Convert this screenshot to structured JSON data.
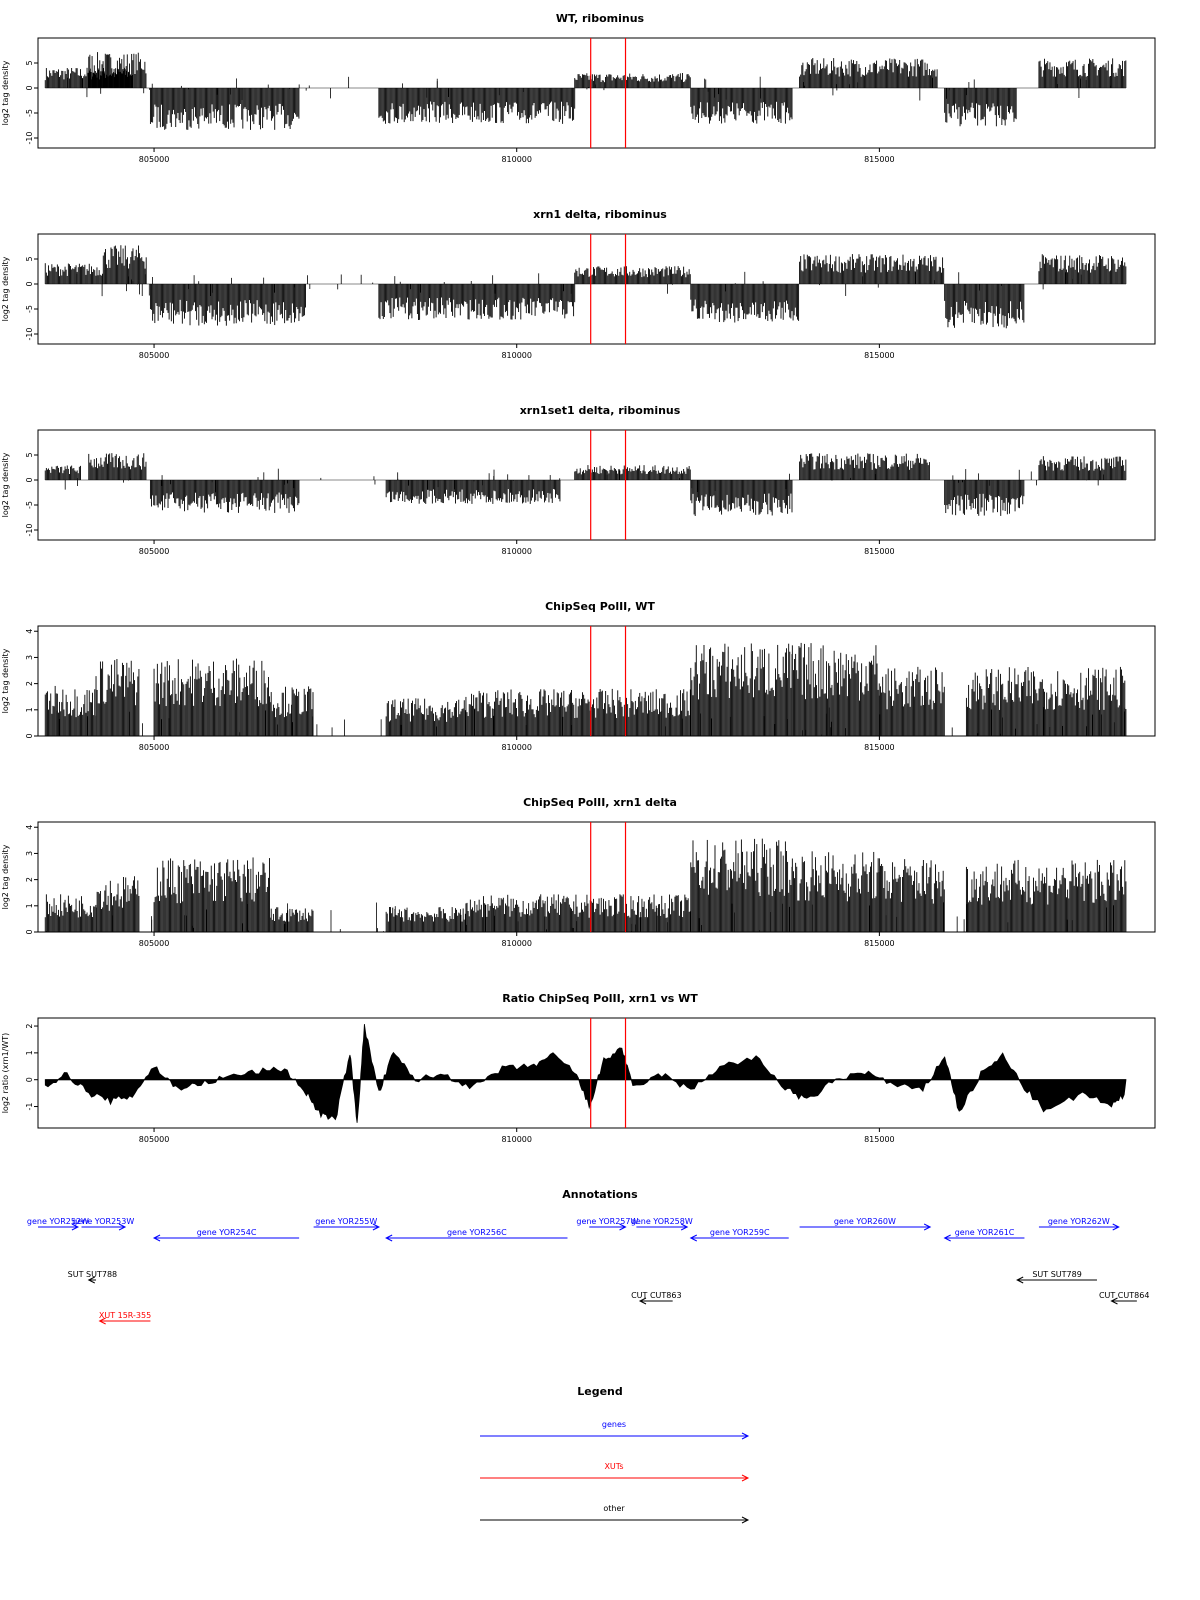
{
  "chart_data": [
    {
      "type": "bar",
      "title": "WT, ribominus",
      "ylabel": "log2 tag density",
      "ylim": [
        -12,
        10
      ],
      "yticks": [
        -10,
        -5,
        0,
        5
      ],
      "xlim": [
        803400,
        818800
      ],
      "xticks": [
        805000,
        810000,
        815000
      ],
      "xtick_labels": [
        "805000",
        "810000",
        "815000"
      ],
      "red_lines_x": [
        811020,
        811500
      ],
      "series": [
        {
          "segments": [
            {
              "x0": 803500,
              "x1": 804700,
              "value": 3.5
            },
            {
              "x0": 804100,
              "x1": 804900,
              "value": 6
            },
            {
              "x0": 804950,
              "x1": 807000,
              "value": -7
            },
            {
              "x0": 808100,
              "x1": 810800,
              "value": -6
            },
            {
              "x0": 810800,
              "x1": 812400,
              "value": 2.5
            },
            {
              "x0": 812400,
              "x1": 813800,
              "value": -6
            },
            {
              "x0": 813900,
              "x1": 815800,
              "value": 5
            },
            {
              "x0": 815900,
              "x1": 816900,
              "value": -6.5
            },
            {
              "x0": 817200,
              "x1": 818400,
              "value": 5
            }
          ]
        }
      ]
    },
    {
      "type": "bar",
      "title": "xrn1 delta, ribominus",
      "ylabel": "log2 tag density",
      "ylim": [
        -12,
        10
      ],
      "yticks": [
        -10,
        -5,
        0,
        5
      ],
      "xlim": [
        803400,
        818800
      ],
      "xticks": [
        805000,
        810000,
        815000
      ],
      "xtick_labels": [
        "805000",
        "810000",
        "815000"
      ],
      "red_lines_x": [
        811020,
        811500
      ],
      "series": [
        {
          "segments": [
            {
              "x0": 803500,
              "x1": 804300,
              "value": 3.5
            },
            {
              "x0": 804300,
              "x1": 804900,
              "value": 6.5
            },
            {
              "x0": 804950,
              "x1": 807100,
              "value": -7
            },
            {
              "x0": 808100,
              "x1": 810800,
              "value": -6
            },
            {
              "x0": 810800,
              "x1": 812400,
              "value": 3
            },
            {
              "x0": 812400,
              "x1": 813900,
              "value": -6.5
            },
            {
              "x0": 813900,
              "x1": 815900,
              "value": 5
            },
            {
              "x0": 815900,
              "x1": 817000,
              "value": -7.5
            },
            {
              "x0": 817200,
              "x1": 818400,
              "value": 5
            }
          ]
        }
      ]
    },
    {
      "type": "bar",
      "title": "xrn1set1 delta, ribominus",
      "ylabel": "log2 tag density",
      "ylim": [
        -12,
        10
      ],
      "yticks": [
        -10,
        -5,
        0,
        5
      ],
      "xlim": [
        803400,
        818800
      ],
      "xticks": [
        805000,
        810000,
        815000
      ],
      "xtick_labels": [
        "805000",
        "810000",
        "815000"
      ],
      "red_lines_x": [
        811020,
        811500
      ],
      "series": [
        {
          "segments": [
            {
              "x0": 803500,
              "x1": 804000,
              "value": 2.5
            },
            {
              "x0": 804100,
              "x1": 804900,
              "value": 4.5
            },
            {
              "x0": 804950,
              "x1": 807000,
              "value": -5.5
            },
            {
              "x0": 808200,
              "x1": 810600,
              "value": -4
            },
            {
              "x0": 810800,
              "x1": 812400,
              "value": 2.5
            },
            {
              "x0": 812400,
              "x1": 813800,
              "value": -6
            },
            {
              "x0": 813900,
              "x1": 815700,
              "value": 4.5
            },
            {
              "x0": 815900,
              "x1": 817000,
              "value": -6
            },
            {
              "x0": 817200,
              "x1": 818400,
              "value": 4
            }
          ]
        }
      ]
    },
    {
      "type": "bar",
      "title": "ChipSeq PolII, WT",
      "ylabel": "log2 tag density",
      "ylim": [
        0,
        4.2
      ],
      "yticks": [
        0,
        1,
        2,
        3,
        4
      ],
      "xlim": [
        803400,
        818800
      ],
      "xticks": [
        805000,
        810000,
        815000
      ],
      "xtick_labels": [
        "805000",
        "810000",
        "815000"
      ],
      "red_lines_x": [
        811020,
        811500
      ],
      "series": [
        {
          "segments": [
            {
              "x0": 803500,
              "x1": 804200,
              "value": 1.6
            },
            {
              "x0": 804200,
              "x1": 804800,
              "value": 2.5
            },
            {
              "x0": 805000,
              "x1": 806600,
              "value": 2.5
            },
            {
              "x0": 806600,
              "x1": 807200,
              "value": 1.6
            },
            {
              "x0": 808200,
              "x1": 809300,
              "value": 1.2
            },
            {
              "x0": 809300,
              "x1": 812400,
              "value": 1.5
            },
            {
              "x0": 812400,
              "x1": 813800,
              "value": 3
            },
            {
              "x0": 813800,
              "x1": 815000,
              "value": 3
            },
            {
              "x0": 815000,
              "x1": 815900,
              "value": 2.2
            },
            {
              "x0": 816200,
              "x1": 818400,
              "value": 2.2
            }
          ]
        }
      ]
    },
    {
      "type": "bar",
      "title": "ChipSeq PolII, xrn1 delta",
      "ylabel": "log2 tag density",
      "ylim": [
        0,
        4.2
      ],
      "yticks": [
        0,
        1,
        2,
        3,
        4
      ],
      "xlim": [
        803400,
        818800
      ],
      "xticks": [
        805000,
        810000,
        815000
      ],
      "xtick_labels": [
        "805000",
        "810000",
        "815000"
      ],
      "red_lines_x": [
        811020,
        811500
      ],
      "series": [
        {
          "segments": [
            {
              "x0": 803500,
              "x1": 804200,
              "value": 1.2
            },
            {
              "x0": 804200,
              "x1": 804800,
              "value": 1.8
            },
            {
              "x0": 805000,
              "x1": 806600,
              "value": 2.4
            },
            {
              "x0": 806600,
              "x1": 807200,
              "value": 0.8
            },
            {
              "x0": 808200,
              "x1": 809300,
              "value": 0.8
            },
            {
              "x0": 809300,
              "x1": 812400,
              "value": 1.2
            },
            {
              "x0": 812400,
              "x1": 813800,
              "value": 3
            },
            {
              "x0": 813800,
              "x1": 815000,
              "value": 2.6
            },
            {
              "x0": 815000,
              "x1": 815900,
              "value": 2.4
            },
            {
              "x0": 816200,
              "x1": 818400,
              "value": 2.3
            }
          ]
        }
      ]
    },
    {
      "type": "area",
      "title": "Ratio ChipSeq PolII, xrn1 vs WT",
      "ylabel": "log2 ratio (xrn1/WT)",
      "ylim": [
        -1.8,
        2.3
      ],
      "yticks": [
        -1,
        0,
        1,
        2
      ],
      "xlim": [
        803400,
        818800
      ],
      "xticks": [
        805000,
        810000,
        815000
      ],
      "xtick_labels": [
        "805000",
        "810000",
        "815000"
      ],
      "red_lines_x": [
        811020,
        811500
      ],
      "series": [
        {
          "points": [
            [
              803500,
              -0.2
            ],
            [
              803800,
              0.2
            ],
            [
              804100,
              -0.5
            ],
            [
              804400,
              -0.8
            ],
            [
              804700,
              -0.6
            ],
            [
              805000,
              0.5
            ],
            [
              805300,
              -0.3
            ],
            [
              805600,
              -0.2
            ],
            [
              806000,
              0.1
            ],
            [
              806400,
              0.3
            ],
            [
              806800,
              0.4
            ],
            [
              807100,
              -0.5
            ],
            [
              807300,
              -1.3
            ],
            [
              807500,
              -1.5
            ],
            [
              807700,
              1.0
            ],
            [
              807800,
              -1.6
            ],
            [
              807900,
              2.0
            ],
            [
              808100,
              -0.5
            ],
            [
              808300,
              1.0
            ],
            [
              808600,
              0.0
            ],
            [
              809000,
              0.2
            ],
            [
              809400,
              -0.3
            ],
            [
              809800,
              0.4
            ],
            [
              810200,
              0.5
            ],
            [
              810500,
              0.9
            ],
            [
              810800,
              0.3
            ],
            [
              811000,
              -1.0
            ],
            [
              811200,
              0.7
            ],
            [
              811450,
              1.2
            ],
            [
              811600,
              -0.3
            ],
            [
              812000,
              0.2
            ],
            [
              812400,
              -0.4
            ],
            [
              812800,
              0.5
            ],
            [
              813300,
              0.8
            ],
            [
              813700,
              -0.3
            ],
            [
              814000,
              -0.8
            ],
            [
              814400,
              0.0
            ],
            [
              814800,
              0.3
            ],
            [
              815200,
              -0.2
            ],
            [
              815600,
              -0.4
            ],
            [
              815900,
              0.9
            ],
            [
              816100,
              -1.2
            ],
            [
              816400,
              0.2
            ],
            [
              816700,
              0.9
            ],
            [
              817000,
              -0.3
            ],
            [
              817300,
              -1.2
            ],
            [
              817800,
              -0.5
            ],
            [
              818200,
              -1.0
            ],
            [
              818400,
              -0.5
            ]
          ]
        }
      ]
    }
  ],
  "annotations": {
    "title": "Annotations",
    "genes": [
      {
        "label": "gene YOR252W",
        "x0": 803400,
        "x1": 803950,
        "dir": "right",
        "row": 0
      },
      {
        "label": "gene YOR253W",
        "x0": 804000,
        "x1": 804600,
        "dir": "right",
        "row": 0
      },
      {
        "label": "gene YOR254C",
        "x0": 805000,
        "x1": 807000,
        "dir": "left",
        "row": 1
      },
      {
        "label": "gene YOR255W",
        "x0": 807200,
        "x1": 808100,
        "dir": "right",
        "row": 0
      },
      {
        "label": "gene YOR256C",
        "x0": 808200,
        "x1": 810700,
        "dir": "left",
        "row": 1
      },
      {
        "label": "gene YOR257W",
        "x0": 811000,
        "x1": 811500,
        "dir": "right",
        "row": 0
      },
      {
        "label": "gene YOR258W",
        "x0": 811650,
        "x1": 812350,
        "dir": "right",
        "row": 0
      },
      {
        "label": "gene YOR259C",
        "x0": 812400,
        "x1": 813750,
        "dir": "left",
        "row": 1
      },
      {
        "label": "gene YOR260W",
        "x0": 813900,
        "x1": 815700,
        "dir": "right",
        "row": 0
      },
      {
        "label": "gene YOR261C",
        "x0": 815900,
        "x1": 817000,
        "dir": "left",
        "row": 1
      },
      {
        "label": "gene YOR262W",
        "x0": 817200,
        "x1": 818300,
        "dir": "right",
        "row": 0
      }
    ],
    "suts": [
      {
        "label": "SUT SUT788",
        "x0": 804100,
        "x1": 804200,
        "dir": "left"
      },
      {
        "label": "SUT SUT789",
        "x0": 816900,
        "x1": 818000,
        "dir": "left"
      }
    ],
    "cuts": [
      {
        "label": "CUT CUT863",
        "x0": 811700,
        "x1": 812150,
        "dir": "left"
      },
      {
        "label": "CUT CUT864",
        "x0": 818200,
        "x1": 818550,
        "dir": "left"
      }
    ],
    "xuts": [
      {
        "label": "XUT 15R-355",
        "x0": 804250,
        "x1": 804950,
        "dir": "left"
      }
    ]
  },
  "legend": {
    "title": "Legend",
    "items": [
      {
        "label": "genes",
        "color": "#0000ff"
      },
      {
        "label": "XUTs",
        "color": "#ff0000"
      },
      {
        "label": "other",
        "color": "#000000"
      }
    ]
  },
  "colors": {
    "red_marker": "#ff0000",
    "gene": "#0000ff",
    "xut": "#ff0000",
    "other": "#000000",
    "bars": "#000000"
  }
}
